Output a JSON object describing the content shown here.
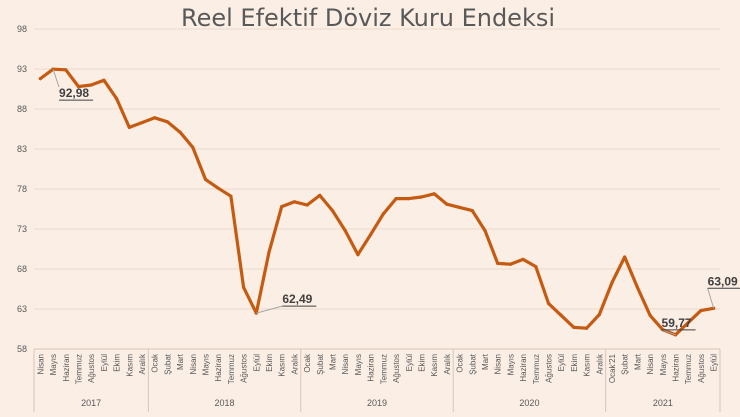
{
  "chart_data": {
    "type": "line",
    "title": "Reel Efektif Döviz Kuru Endeksi",
    "xlabel": "",
    "ylabel": "",
    "ylim": [
      58,
      98
    ],
    "yticks": [
      58,
      63,
      68,
      73,
      78,
      83,
      88,
      93,
      98
    ],
    "grid": true,
    "legend": "none",
    "line_color": "#c55a11",
    "years": [
      {
        "label": "2017",
        "start": 0,
        "end": 8
      },
      {
        "label": "2018",
        "start": 9,
        "end": 20
      },
      {
        "label": "2019",
        "start": 21,
        "end": 32
      },
      {
        "label": "2020",
        "start": 33,
        "end": 44
      },
      {
        "label": "2021",
        "start": 45,
        "end": 53
      }
    ],
    "categories": [
      "Nisan",
      "Mayıs",
      "Haziran",
      "Temmuz",
      "Ağustos",
      "Eylül",
      "Ekim",
      "Kasım",
      "Aralık",
      "Ocak",
      "Şubat",
      "Mart",
      "Nisan",
      "Mayıs",
      "Haziran",
      "Temmuz",
      "Ağustos",
      "Eylül",
      "Ekim",
      "Kasım",
      "Aralık",
      "Ocak",
      "Şubat",
      "Mart",
      "Nisan",
      "Mayıs",
      "Haziran",
      "Temmuz",
      "Ağustos",
      "Eylül",
      "Ekim",
      "Kasım",
      "Aralık",
      "Ocak",
      "Şubat",
      "Mart",
      "Nisan",
      "Mayıs",
      "Haziran",
      "Temmuz",
      "Ağustos",
      "Eylül",
      "Ekim",
      "Kasım",
      "Aralık",
      "Ocak'21",
      "Şubat",
      "Mart",
      "Nisan",
      "Mayıs",
      "Haziran",
      "Temmuz",
      "Ağustos",
      "Eylül"
    ],
    "values": [
      91.8,
      92.98,
      92.9,
      90.8,
      91.0,
      91.6,
      89.3,
      85.7,
      86.3,
      86.9,
      86.4,
      85.1,
      83.2,
      79.2,
      78.1,
      77.1,
      65.7,
      62.49,
      70.1,
      75.8,
      76.4,
      76.0,
      77.2,
      75.3,
      72.8,
      69.8,
      72.3,
      74.9,
      76.8,
      76.8,
      77.0,
      77.4,
      76.1,
      75.7,
      75.3,
      72.8,
      68.7,
      68.6,
      69.2,
      68.3,
      63.7,
      62.2,
      60.7,
      60.6,
      62.3,
      66.3,
      69.5,
      65.7,
      62.2,
      60.4,
      59.77,
      61.3,
      62.8,
      63.09
    ],
    "annotations": [
      {
        "text": "92,98",
        "index": 1
      },
      {
        "text": "62,49",
        "index": 17
      },
      {
        "text": "59,77",
        "index": 50
      },
      {
        "text": "63,09",
        "index": 53
      }
    ]
  }
}
